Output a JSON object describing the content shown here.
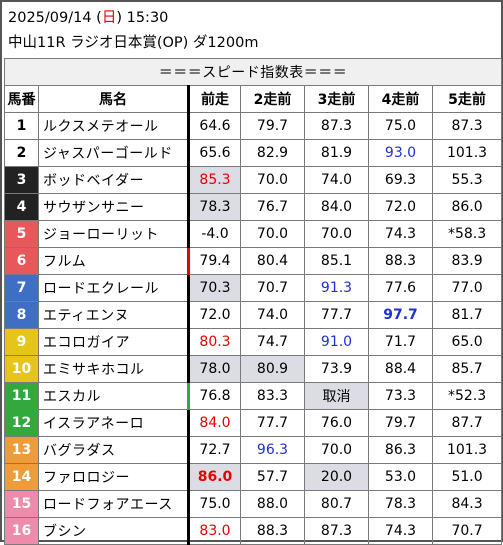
{
  "header": {
    "date_main": "2025/09/14 (",
    "date_day": "日",
    "date_close": ") 15:30",
    "race": "中山11R ラジオ日本賞(OP) ダ1200m"
  },
  "table": {
    "title": "＝＝＝スピード指数表＝＝＝",
    "headers": [
      "馬番",
      "馬名",
      "前走",
      "2走前",
      "3走前",
      "4走前",
      "5走前"
    ],
    "rows": [
      {
        "num": "1",
        "bg": "#ffffff",
        "fg": "#000000",
        "name": "ルクスメテオール",
        "cells": [
          "64.6",
          "79.7",
          "87.3",
          "75.0",
          "87.3"
        ]
      },
      {
        "num": "2",
        "bg": "#ffffff",
        "fg": "#000000",
        "name": "ジャスパーゴールド",
        "cells": [
          "65.6",
          "82.9",
          "81.9",
          "93.0",
          "101.3"
        ]
      },
      {
        "num": "3",
        "bg": "#222222",
        "fg": "#ffffff",
        "name": "ボッドベイダー",
        "cells": [
          "85.3",
          "70.0",
          "74.0",
          "69.3",
          "55.3"
        ]
      },
      {
        "num": "4",
        "bg": "#222222",
        "fg": "#ffffff",
        "name": "サウザンサニー",
        "cells": [
          "78.3",
          "76.7",
          "84.0",
          "72.0",
          "86.0"
        ]
      },
      {
        "num": "5",
        "bg": "#e8575a",
        "fg": "#ffffff",
        "name": "ジョーローリット",
        "cells": [
          "-4.0",
          "70.0",
          "70.0",
          "74.3",
          "*58.3"
        ]
      },
      {
        "num": "6",
        "bg": "#e8575a",
        "fg": "#ffffff",
        "name": "フルム",
        "cells": [
          "79.4",
          "80.4",
          "85.1",
          "88.3",
          "83.9"
        ]
      },
      {
        "num": "7",
        "bg": "#3f6fc4",
        "fg": "#ffffff",
        "name": "ロードエクレール",
        "cells": [
          "70.3",
          "70.7",
          "91.3",
          "77.6",
          "77.0"
        ]
      },
      {
        "num": "8",
        "bg": "#3f6fc4",
        "fg": "#ffffff",
        "name": "エティエンヌ",
        "cells": [
          "72.0",
          "74.0",
          "77.7",
          "97.7",
          "81.7"
        ]
      },
      {
        "num": "9",
        "bg": "#e6c419",
        "fg": "#ffffff",
        "name": "エコロガイア",
        "cells": [
          "80.3",
          "74.7",
          "91.0",
          "71.7",
          "65.0"
        ]
      },
      {
        "num": "10",
        "bg": "#e6c419",
        "fg": "#ffffff",
        "name": "エミサキホコル",
        "cells": [
          "78.0",
          "80.9",
          "73.9",
          "88.4",
          "85.7"
        ]
      },
      {
        "num": "11",
        "bg": "#33a83e",
        "fg": "#ffffff",
        "name": "エスカル",
        "cells": [
          "76.8",
          "83.3",
          "取消",
          "73.3",
          "*52.3"
        ]
      },
      {
        "num": "12",
        "bg": "#33a83e",
        "fg": "#ffffff",
        "name": "イスラアネーロ",
        "cells": [
          "84.0",
          "77.7",
          "76.0",
          "79.7",
          "87.7"
        ]
      },
      {
        "num": "13",
        "bg": "#ef9b38",
        "fg": "#ffffff",
        "name": "バグラダス",
        "cells": [
          "72.7",
          "96.3",
          "70.0",
          "86.3",
          "101.3"
        ]
      },
      {
        "num": "14",
        "bg": "#ef9b38",
        "fg": "#ffffff",
        "name": "ファロロジー",
        "cells": [
          "86.0",
          "57.7",
          "20.0",
          "53.0",
          "51.0"
        ]
      },
      {
        "num": "15",
        "bg": "#f08aaa",
        "fg": "#ffffff",
        "name": "ロードフォアエース",
        "cells": [
          "75.0",
          "88.0",
          "80.7",
          "78.3",
          "84.3"
        ]
      },
      {
        "num": "16",
        "bg": "#f08aaa",
        "fg": "#ffffff",
        "name": "ブシン",
        "cells": [
          "83.0",
          "88.3",
          "87.3",
          "74.3",
          "70.7"
        ]
      }
    ]
  }
}
